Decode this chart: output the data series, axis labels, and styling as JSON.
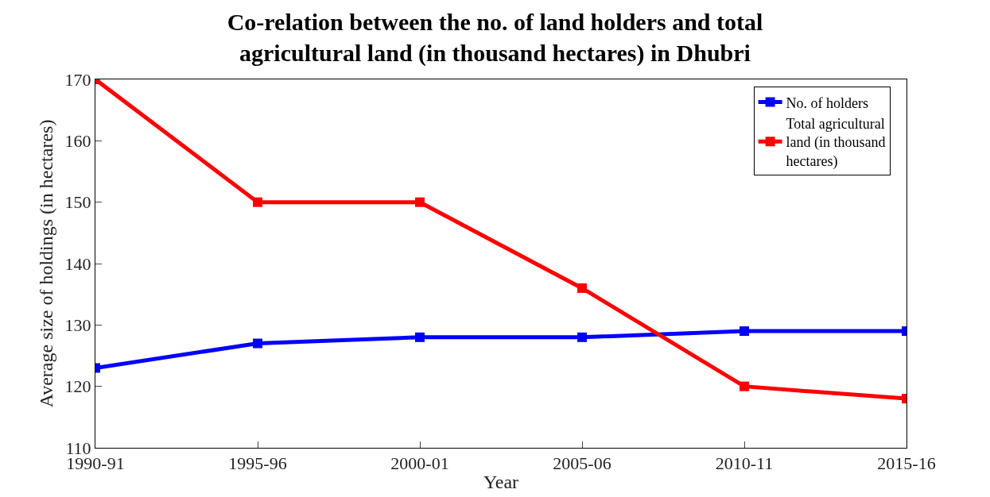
{
  "chart_data": {
    "type": "line",
    "title": "Co-relation between the no. of land holders and total agricultural land (in thousand hectares) in Dhubri",
    "xlabel": "Year",
    "ylabel": "Average size of holdings (in hectares)",
    "categories": [
      "1990-91",
      "1995-96",
      "2000-01",
      "2005-06",
      "2010-11",
      "2015-16"
    ],
    "series": [
      {
        "name": "No. of holders",
        "color": "#0000ff",
        "values": [
          123,
          127,
          128,
          128,
          129,
          129
        ]
      },
      {
        "name": "Total agricultural land (in thousand hectares)",
        "color": "#ff0000",
        "values": [
          170,
          150,
          150,
          136,
          120,
          118
        ]
      }
    ],
    "ylim": [
      110,
      170
    ],
    "yticks": [
      110,
      120,
      130,
      140,
      150,
      160,
      170
    ],
    "legend": "top right",
    "marker": "square",
    "line_style": "solid"
  }
}
